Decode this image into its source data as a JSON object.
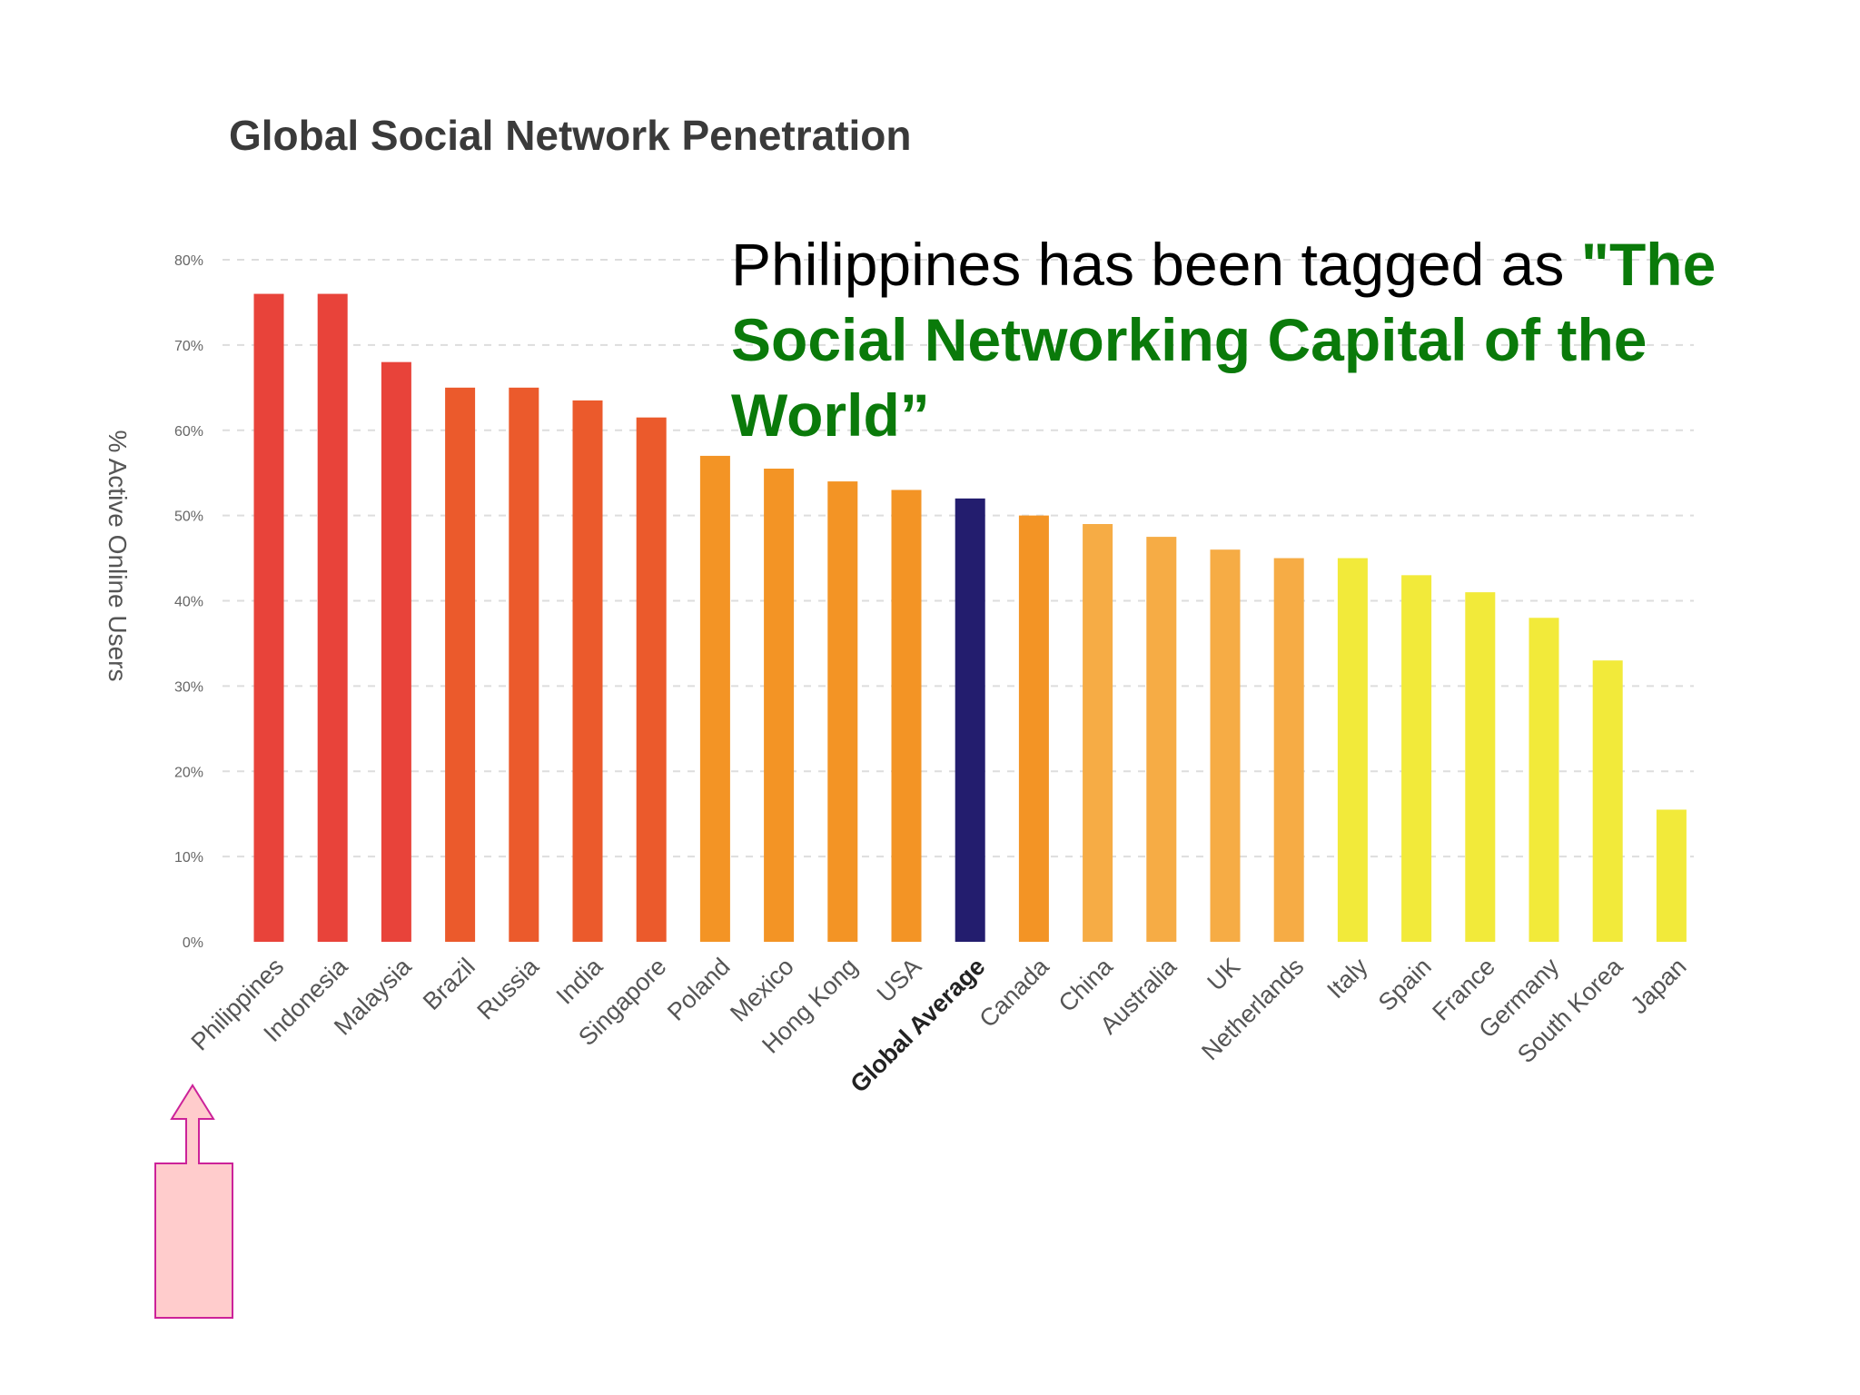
{
  "chart_data": {
    "type": "bar",
    "title": "Global Social Network Penetration",
    "ylabel": "% Active Online Users",
    "xlabel": "",
    "ylim": [
      0,
      80
    ],
    "yticks": [
      "0%",
      "10%",
      "20%",
      "30%",
      "40%",
      "50%",
      "60%",
      "70%",
      "80%"
    ],
    "grid": true,
    "highlighted_category": "Global Average",
    "categories": [
      "Philippines",
      "Indonesia",
      "Malaysia",
      "Brazil",
      "Russia",
      "India",
      "Singapore",
      "Poland",
      "Mexico",
      "Hong Kong",
      "USA",
      "Global Average",
      "Canada",
      "China",
      "Australia",
      "UK",
      "Netherlands",
      "Italy",
      "Spain",
      "France",
      "Germany",
      "South Korea",
      "Japan"
    ],
    "values": [
      76,
      76,
      68,
      65,
      65,
      63.5,
      61.5,
      57,
      55.5,
      54,
      53,
      52,
      50,
      49,
      47.5,
      46,
      45,
      45,
      43,
      41,
      38,
      33,
      15.5
    ],
    "colors": [
      "#e8433a",
      "#e8433a",
      "#e8433a",
      "#eb5a2c",
      "#eb5a2c",
      "#eb5a2c",
      "#eb5a2c",
      "#f39425",
      "#f39425",
      "#f39425",
      "#f39425",
      "#231d6e",
      "#f39425",
      "#f6ac45",
      "#f6ac45",
      "#f6ac45",
      "#f6ac45",
      "#f2ea3a",
      "#f2ea3a",
      "#f2ea3a",
      "#f2ea3a",
      "#f2ea3a",
      "#f2ea3a"
    ]
  },
  "annotation": {
    "text_plain": "Philippines has been tagged as ",
    "text_highlight": "\"The Social Networking Capital of the World”",
    "highlight_color": "#0a7a0a"
  },
  "arrow": {
    "fill": "#ffcccc",
    "stroke": "#cc2299"
  }
}
